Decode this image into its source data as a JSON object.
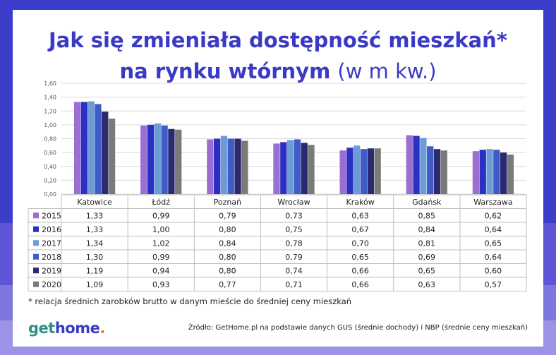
{
  "header": {
    "title_line1": "Jak się zmieniała dostępność mieszkań*",
    "title_line2_bold": "na rynku wtórnym",
    "title_line2_unit": "(w m kw.)"
  },
  "chart_data": {
    "type": "bar",
    "categories": [
      "Katowice",
      "Łódź",
      "Poznań",
      "Wrocław",
      "Kraków",
      "Gdańsk",
      "Warszawa"
    ],
    "series": [
      {
        "name": "2015",
        "color": "#9b6fd1",
        "values": [
          1.33,
          0.99,
          0.79,
          0.73,
          0.63,
          0.85,
          0.62
        ],
        "labels": [
          "1,33",
          "0,99",
          "0,79",
          "0,73",
          "0,63",
          "0,85",
          "0,62"
        ]
      },
      {
        "name": "2016",
        "color": "#2b30c4",
        "values": [
          1.33,
          1.0,
          0.8,
          0.75,
          0.67,
          0.84,
          0.64
        ],
        "labels": [
          "1,33",
          "1,00",
          "0,80",
          "0,75",
          "0,67",
          "0,84",
          "0,64"
        ]
      },
      {
        "name": "2017",
        "color": "#6c9bd6",
        "values": [
          1.34,
          1.02,
          0.84,
          0.78,
          0.7,
          0.81,
          0.65
        ],
        "labels": [
          "1,34",
          "1,02",
          "0,84",
          "0,78",
          "0,70",
          "0,81",
          "0,65"
        ]
      },
      {
        "name": "2018",
        "color": "#3f5bc8",
        "values": [
          1.3,
          0.99,
          0.8,
          0.79,
          0.65,
          0.69,
          0.64
        ],
        "labels": [
          "1,30",
          "0,99",
          "0,80",
          "0,79",
          "0,65",
          "0,69",
          "0,64"
        ]
      },
      {
        "name": "2019",
        "color": "#2b2970",
        "values": [
          1.19,
          0.94,
          0.8,
          0.74,
          0.66,
          0.65,
          0.6
        ],
        "labels": [
          "1,19",
          "0,94",
          "0,80",
          "0,74",
          "0,66",
          "0,65",
          "0,60"
        ]
      },
      {
        "name": "2020",
        "color": "#7a7a7a",
        "values": [
          1.09,
          0.93,
          0.77,
          0.71,
          0.66,
          0.63,
          0.57
        ],
        "labels": [
          "1,09",
          "0,93",
          "0,77",
          "0,71",
          "0,66",
          "0,63",
          "0,57"
        ]
      }
    ],
    "ylim": [
      0,
      1.6
    ],
    "yticks": [
      "0,00",
      "0,20",
      "0,40",
      "0,60",
      "0,80",
      "1,00",
      "1,20",
      "1,40",
      "1,60"
    ],
    "grid": true,
    "legend": "data-table"
  },
  "footnote": "* relacja średnich zarobków brutto w danym mieście do średniej ceny mieszkań",
  "logo": {
    "part1": "get",
    "part2": "home",
    "part3": "."
  },
  "source": "Źródło: GetHome.pl na podstawie danych GUS (średnie dochody) i NBP (średnie ceny mieszkań)"
}
